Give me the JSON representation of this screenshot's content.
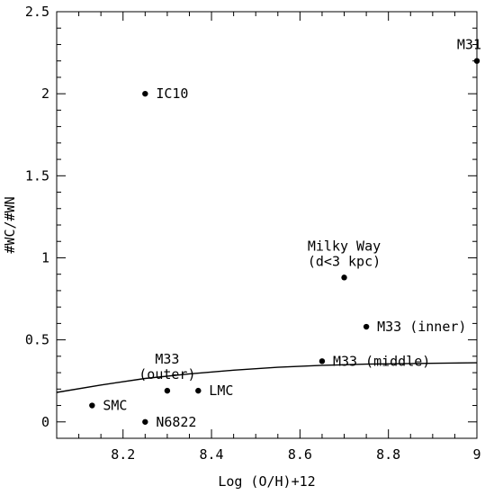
{
  "chart_data": {
    "type": "scatter",
    "xlabel": "Log (O/H)+12",
    "ylabel": "#WC/#WN",
    "xlim": [
      8.05,
      9.0
    ],
    "ylim": [
      -0.1,
      2.5
    ],
    "xticks": {
      "major": [
        "8.2",
        "8.4",
        "8.6",
        "8.8",
        "9"
      ]
    },
    "yticks": {
      "major": [
        "0",
        "0.5",
        "1",
        "1.5",
        "2",
        "2.5"
      ]
    },
    "points": [
      {
        "name": "SMC",
        "label_lines": [
          "SMC"
        ],
        "x": 8.13,
        "y": 0.1,
        "label_side": "right"
      },
      {
        "name": "N6822",
        "label_lines": [
          "N6822"
        ],
        "x": 8.25,
        "y": 0.0,
        "label_side": "right"
      },
      {
        "name": "IC10",
        "label_lines": [
          "IC10"
        ],
        "x": 8.25,
        "y": 2.0,
        "label_side": "right"
      },
      {
        "name": "M33 (outer)",
        "label_lines": [
          "M33",
          "(outer)"
        ],
        "x": 8.3,
        "y": 0.19,
        "label_side": "above"
      },
      {
        "name": "LMC",
        "label_lines": [
          "LMC"
        ],
        "x": 8.37,
        "y": 0.19,
        "label_side": "right"
      },
      {
        "name": "M33 (middle)",
        "label_lines": [
          "M33 (middle)"
        ],
        "x": 8.65,
        "y": 0.37,
        "label_side": "right"
      },
      {
        "name": "Milky Way (d<3 kpc)",
        "label_lines": [
          "Milky Way",
          "(d<3 kpc)"
        ],
        "x": 8.7,
        "y": 0.88,
        "label_side": "above"
      },
      {
        "name": "M33 (inner)",
        "label_lines": [
          "M33 (inner)"
        ],
        "x": 8.75,
        "y": 0.58,
        "label_side": "right"
      },
      {
        "name": "M31",
        "label_lines": [
          "M31"
        ],
        "x": 9.0,
        "y": 2.2,
        "label_side": "above-left"
      }
    ],
    "model_curve": {
      "x": [
        8.05,
        8.15,
        8.25,
        8.35,
        8.45,
        8.55,
        8.65,
        8.75,
        8.85,
        9.0
      ],
      "y": [
        0.18,
        0.225,
        0.265,
        0.293,
        0.315,
        0.333,
        0.345,
        0.352,
        0.356,
        0.36
      ]
    },
    "grid": false,
    "legend": "none"
  }
}
